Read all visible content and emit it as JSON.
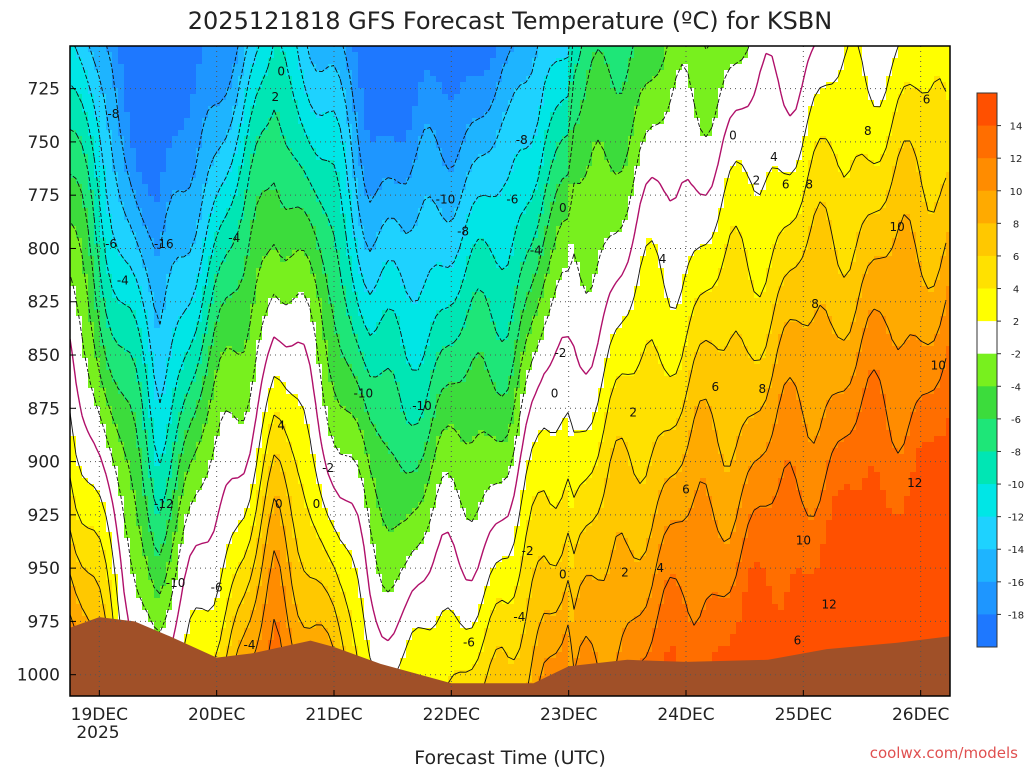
{
  "chart_data": {
    "type": "heatmap",
    "title": "2025121818 GFS Forecast Temperature (ºC) for KSBN",
    "xlabel": "Forecast Time (UTC)",
    "ylabel": "",
    "x_ticks": [
      "19DEC",
      "20DEC",
      "21DEC",
      "22DEC",
      "23DEC",
      "24DEC",
      "25DEC",
      "26DEC"
    ],
    "x_year_label": "2025",
    "x_range_days": [
      18.75,
      26.25
    ],
    "y_ticks": [
      725,
      750,
      775,
      800,
      825,
      850,
      875,
      900,
      925,
      950,
      975,
      1000
    ],
    "ylim_hpa": [
      705,
      1010
    ],
    "grid": "dotted",
    "colorbar": {
      "levels": [
        -20,
        -18,
        -16,
        -14,
        -12,
        -10,
        -8,
        -6,
        -4,
        -2,
        2,
        4,
        6,
        8,
        10,
        12,
        14,
        16
      ],
      "tick_labels": [
        "-18",
        "-16",
        "-14",
        "-12",
        "-10",
        "-8",
        "-6",
        "-4",
        "-2",
        "2",
        "4",
        "6",
        "8",
        "10",
        "12",
        "14"
      ],
      "colors": [
        "#1e78ff",
        "#1e96ff",
        "#1eb4ff",
        "#1ed2ff",
        "#00e6e6",
        "#00e6b4",
        "#1ee678",
        "#3cdc3c",
        "#78f01e",
        "#ffffff",
        "#ffff00",
        "#ffe100",
        "#ffc800",
        "#ffaa00",
        "#ff8c00",
        "#ff6e00",
        "#ff5000"
      ]
    },
    "contour_labels": [
      {
        "t": 19.12,
        "p": 737,
        "v": "-8"
      },
      {
        "t": 19.1,
        "p": 798,
        "v": "-6"
      },
      {
        "t": 19.2,
        "p": 815,
        "v": "-4"
      },
      {
        "t": 19.55,
        "p": 798,
        "v": "-16"
      },
      {
        "t": 19.55,
        "p": 920,
        "v": "-12"
      },
      {
        "t": 19.65,
        "p": 957,
        "v": "-10"
      },
      {
        "t": 20.0,
        "p": 959,
        "v": "-6"
      },
      {
        "t": 20.15,
        "p": 795,
        "v": "-4"
      },
      {
        "t": 20.28,
        "p": 986,
        "v": "-4"
      },
      {
        "t": 20.55,
        "p": 717,
        "v": "0"
      },
      {
        "t": 20.5,
        "p": 729,
        "v": "2"
      },
      {
        "t": 20.55,
        "p": 883,
        "v": "4"
      },
      {
        "t": 20.53,
        "p": 920,
        "v": "0"
      },
      {
        "t": 20.85,
        "p": 920,
        "v": "0"
      },
      {
        "t": 20.95,
        "p": 903,
        "v": "-2"
      },
      {
        "t": 21.25,
        "p": 868,
        "v": "-10"
      },
      {
        "t": 21.75,
        "p": 874,
        "v": "-10"
      },
      {
        "t": 21.95,
        "p": 777,
        "v": "-10"
      },
      {
        "t": 22.1,
        "p": 792,
        "v": "-8"
      },
      {
        "t": 22.6,
        "p": 749,
        "v": "-8"
      },
      {
        "t": 22.52,
        "p": 777,
        "v": "-6"
      },
      {
        "t": 22.72,
        "p": 801,
        "v": "-4"
      },
      {
        "t": 22.93,
        "p": 849,
        "v": "-2"
      },
      {
        "t": 22.95,
        "p": 781,
        "v": "0"
      },
      {
        "t": 22.88,
        "p": 868,
        "v": "0"
      },
      {
        "t": 22.15,
        "p": 985,
        "v": "-6"
      },
      {
        "t": 22.58,
        "p": 973,
        "v": "-4"
      },
      {
        "t": 22.65,
        "p": 942,
        "v": "-2"
      },
      {
        "t": 22.95,
        "p": 953,
        "v": "0"
      },
      {
        "t": 23.48,
        "p": 952,
        "v": "2"
      },
      {
        "t": 23.55,
        "p": 877,
        "v": "2"
      },
      {
        "t": 23.8,
        "p": 805,
        "v": "4"
      },
      {
        "t": 23.78,
        "p": 950,
        "v": "4"
      },
      {
        "t": 24.0,
        "p": 913,
        "v": "6"
      },
      {
        "t": 24.25,
        "p": 865,
        "v": "6"
      },
      {
        "t": 24.4,
        "p": 747,
        "v": "0"
      },
      {
        "t": 24.6,
        "p": 768,
        "v": "2"
      },
      {
        "t": 24.75,
        "p": 757,
        "v": "4"
      },
      {
        "t": 24.85,
        "p": 770,
        "v": "6"
      },
      {
        "t": 24.95,
        "p": 984,
        "v": "6"
      },
      {
        "t": 24.65,
        "p": 866,
        "v": "8"
      },
      {
        "t": 25.05,
        "p": 770,
        "v": "8"
      },
      {
        "t": 25.1,
        "p": 826,
        "v": "8"
      },
      {
        "t": 25.0,
        "p": 937,
        "v": "10"
      },
      {
        "t": 25.22,
        "p": 967,
        "v": "12"
      },
      {
        "t": 25.55,
        "p": 745,
        "v": "8"
      },
      {
        "t": 25.8,
        "p": 790,
        "v": "10"
      },
      {
        "t": 25.95,
        "p": 910,
        "v": "12"
      },
      {
        "t": 26.05,
        "p": 730,
        "v": "6"
      },
      {
        "t": 26.15,
        "p": 855,
        "v": "10"
      }
    ]
  },
  "credit": "coolwx.com/models"
}
